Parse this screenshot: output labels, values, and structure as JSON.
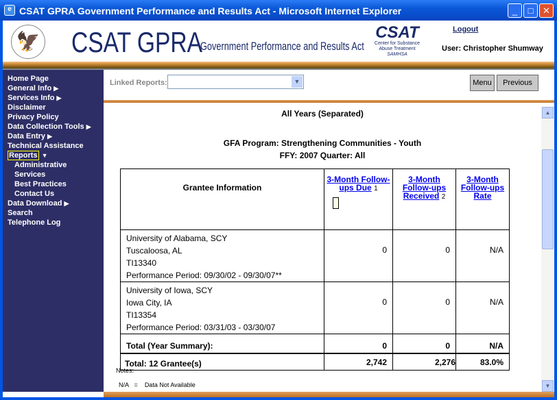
{
  "window": {
    "title": "CSAT GPRA Government Performance and Results Act - Microsoft Internet Explorer"
  },
  "header": {
    "brand": "CSAT GPRA",
    "brand_sub": "Government Performance and Results Act",
    "csat_logo": "CSAT",
    "csat_line1": "Center for Substance",
    "csat_line2": "Abuse Treatment",
    "csat_line3": "SAMHSA",
    "logout": "Logout",
    "user": "User: Christopher Shumway"
  },
  "sidebar": {
    "items": [
      {
        "label": "Home Page",
        "arrow": ""
      },
      {
        "label": "General Info",
        "arrow": "▶"
      },
      {
        "label": "Services Info",
        "arrow": "▶"
      },
      {
        "label": "Disclaimer",
        "arrow": ""
      },
      {
        "label": "Privacy Policy",
        "arrow": ""
      },
      {
        "label": "Data Collection Tools",
        "arrow": "▶"
      },
      {
        "label": "Data Entry",
        "arrow": "▶"
      },
      {
        "label": "Technical Assistance",
        "arrow": ""
      },
      {
        "label": "Reports",
        "arrow": "▼"
      },
      {
        "label": "Administrative",
        "arrow": ""
      },
      {
        "label": "Services",
        "arrow": ""
      },
      {
        "label": "Best Practices",
        "arrow": ""
      },
      {
        "label": "Contact Us",
        "arrow": ""
      },
      {
        "label": "Data Download",
        "arrow": "▶"
      },
      {
        "label": "Search",
        "arrow": ""
      },
      {
        "label": "Telephone Log",
        "arrow": ""
      }
    ]
  },
  "toolbar": {
    "linked_reports_label": "Linked Reports:",
    "linked_reports_value": "",
    "menu": "Menu",
    "previous": "Previous"
  },
  "report": {
    "heading": "All Years (Separated)",
    "program": "GFA Program: Strengthening Communities - Youth",
    "ffy": "FFY: 2007  Quarter: All",
    "columns": {
      "grantee": "Grantee Information",
      "due": "3-Month Follow-ups Due",
      "due_note": "1",
      "received": "3-Month Follow-ups Received",
      "received_note": "2",
      "rate": "3-Month Follow-ups Rate"
    },
    "rows": [
      {
        "name": "University of Alabama, SCY",
        "city": "Tuscaloosa, AL",
        "id": "TI13340",
        "period": "Performance Period: 09/30/02 - 09/30/07**",
        "due": "0",
        "received": "0",
        "rate": "N/A"
      },
      {
        "name": "University of Iowa, SCY",
        "city": "Iowa City, IA",
        "id": "TI13354",
        "period": "Performance Period: 03/31/03 - 03/30/07",
        "due": "0",
        "received": "0",
        "rate": "N/A"
      }
    ],
    "year_total": {
      "label": "Total (Year Summary):",
      "due": "0",
      "received": "0",
      "rate": "N/A"
    },
    "grand_total": {
      "label": "Total: 12 Grantee(s)",
      "due": "2,742",
      "received": "2,276",
      "rate": "83.0%"
    },
    "notes_label": "Notes:",
    "note_abbr": "N/A",
    "note_eq": "=",
    "note_text": "Data Not Available"
  }
}
